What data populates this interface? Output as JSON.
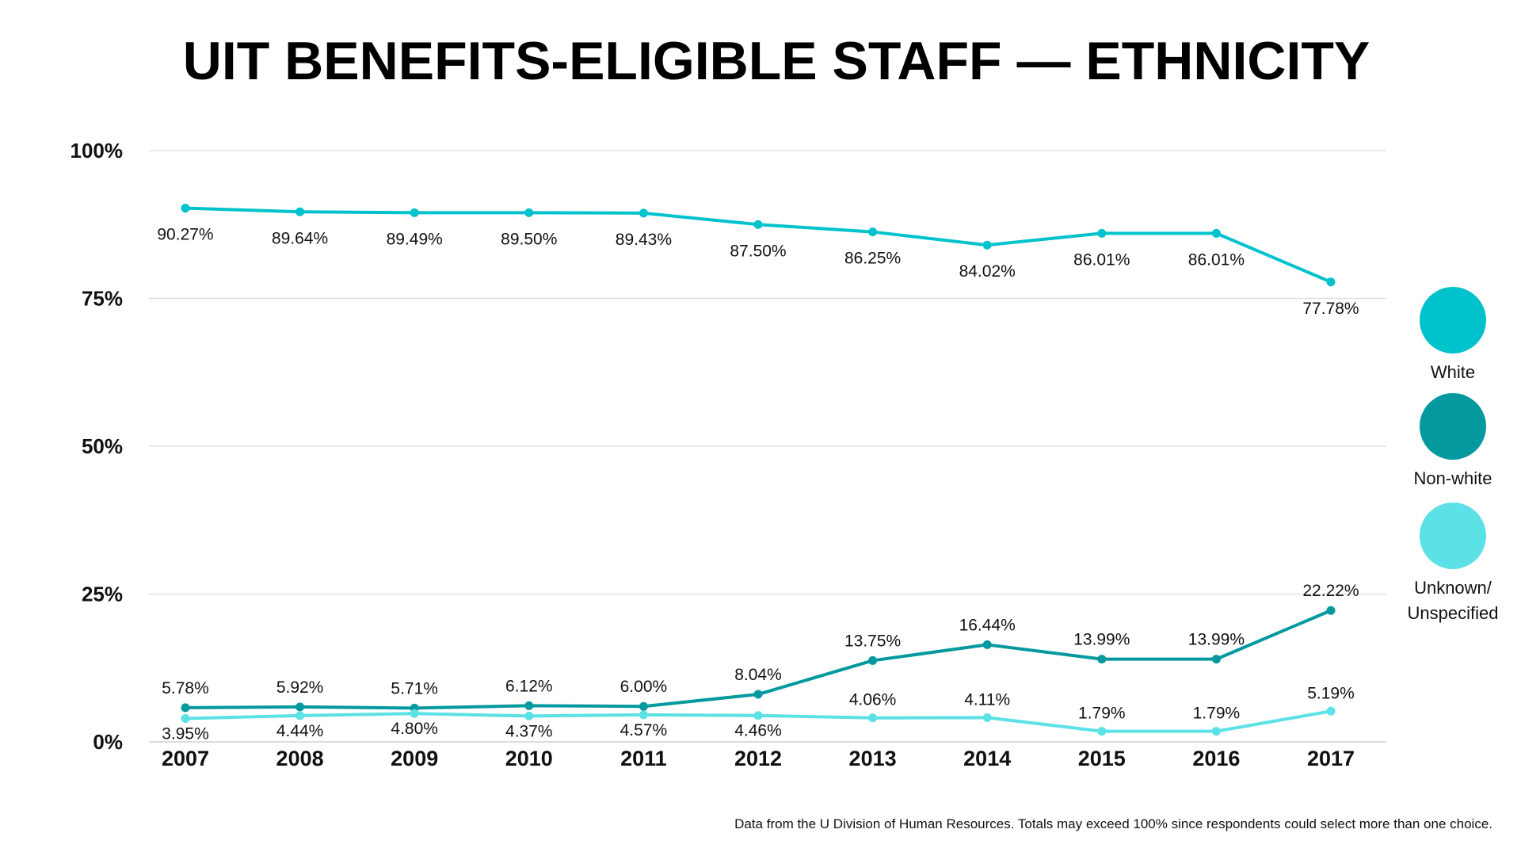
{
  "chart_data": {
    "type": "line",
    "title": "UIT BENEFITS-ELIGIBLE STAFF — ETHNICITY",
    "categories": [
      "2007",
      "2008",
      "2009",
      "2010",
      "2011",
      "2012",
      "2013",
      "2014",
      "2015",
      "2016",
      "2017"
    ],
    "yticks": [
      "0%",
      "25%",
      "50%",
      "75%",
      "100%"
    ],
    "ylim": [
      0,
      100
    ],
    "grid": true,
    "legend_position": "right",
    "series": [
      {
        "name": "White",
        "color": "#00c2cc",
        "values": [
          90.27,
          89.64,
          89.49,
          89.5,
          89.43,
          87.5,
          86.25,
          84.02,
          86.01,
          86.01,
          77.78
        ],
        "labels": [
          "90.27%",
          "89.64%",
          "89.49%",
          "89.50%",
          "89.43%",
          "87.50%",
          "86.25%",
          "84.02%",
          "86.01%",
          "86.01%",
          "77.78%"
        ]
      },
      {
        "name": "Non-white",
        "color": "#03999e",
        "values": [
          5.78,
          5.92,
          5.71,
          6.12,
          6.0,
          8.04,
          13.75,
          16.44,
          13.99,
          13.99,
          22.22
        ],
        "labels": [
          "5.78%",
          "5.92%",
          "5.71%",
          "6.12%",
          "6.00%",
          "8.04%",
          "13.75%",
          "16.44%",
          "13.99%",
          "13.99%",
          "22.22%"
        ]
      },
      {
        "name": "Unknown/ Unspecified",
        "color": "#5ce1e6",
        "values": [
          3.95,
          4.44,
          4.8,
          4.37,
          4.57,
          4.46,
          4.06,
          4.11,
          1.79,
          1.79,
          5.19
        ],
        "labels": [
          "3.95%",
          "4.44%",
          "4.80%",
          "4.37%",
          "4.57%",
          "4.46%",
          "4.06%",
          "4.11%",
          "1.79%",
          "1.79%",
          "5.19%"
        ]
      }
    ]
  },
  "legend": [
    {
      "line1": "White",
      "line2": "",
      "color": "#00c2cc"
    },
    {
      "line1": "Non-white",
      "line2": "",
      "color": "#03999e"
    },
    {
      "line1": "Unknown/",
      "line2": "Unspecified",
      "color": "#5ce1e6"
    }
  ],
  "footnote": "Data from the U Division of Human Resources. Totals may exceed 100% since respondents could select more than one choice."
}
